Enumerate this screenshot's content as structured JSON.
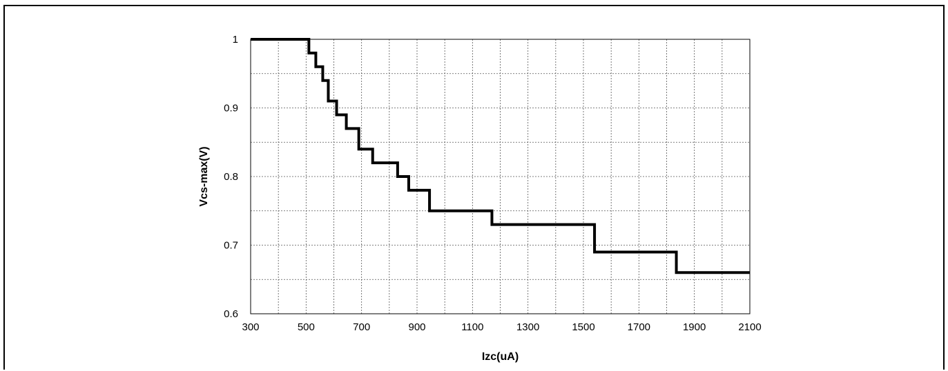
{
  "chart_data": {
    "type": "line",
    "title": "",
    "xlabel": "Izc(uA)",
    "ylabel": "Vcs-max(V)",
    "xlim": [
      300,
      2100
    ],
    "ylim": [
      0.6,
      1.0
    ],
    "x_ticks": [
      300,
      500,
      700,
      900,
      1100,
      1300,
      1500,
      1700,
      1900,
      2100
    ],
    "y_ticks": [
      0.6,
      0.7,
      0.8,
      0.9,
      1.0
    ],
    "y_tick_labels": [
      "0.6",
      "0.7",
      "0.8",
      "0.9",
      "1"
    ],
    "grid": true,
    "x_grid_step": 100,
    "y_grid_step": 0.05,
    "step_style": "post",
    "series": [
      {
        "x": [
          300,
          510,
          535,
          560,
          580,
          610,
          645,
          690,
          740,
          830,
          870,
          945,
          1050,
          1170,
          1540,
          1835,
          2100
        ],
        "y": [
          1.0,
          0.98,
          0.96,
          0.94,
          0.91,
          0.89,
          0.87,
          0.84,
          0.82,
          0.8,
          0.78,
          0.75,
          0.75,
          0.73,
          0.69,
          0.66,
          0.66
        ]
      }
    ]
  }
}
